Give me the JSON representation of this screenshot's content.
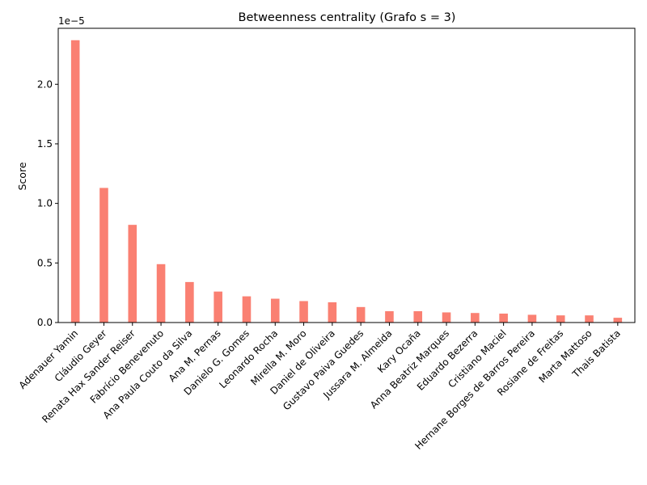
{
  "chart_data": {
    "type": "bar",
    "title": "Betweenness centrality (Grafo s = 3)",
    "xlabel": "",
    "ylabel": "Score",
    "scale_label": "1e−5",
    "ylim": [
      0,
      2.47
    ],
    "yticks": [
      0.0,
      0.5,
      1.0,
      1.5,
      2.0
    ],
    "ytick_labels": [
      "0.0",
      "0.5",
      "1.0",
      "1.5",
      "2.0"
    ],
    "bar_color": "#fa8072",
    "grid": false,
    "categories": [
      "Adenauer Yamin",
      "Cláudio Geyer",
      "Renata Hax Sander Reiser",
      "Fabrício Benevenuto",
      "Ana Paula Couto da Silva",
      "Ana M. Pernas",
      "Danielo G. Gomes",
      "Leonardo Rocha",
      "Mirella M. Moro",
      "Daniel de Oliveira",
      "Gustavo Paiva Guedes",
      "Jussara M. Almeida",
      "Kary Ocaña",
      "Anna Beatriz Marques",
      "Eduardo Bezerra",
      "Cristiano Maciel",
      "Hernane Borges de Barros Pereira",
      "Rosiane de Freitas",
      "Marta Mattoso",
      "Thais Batista"
    ],
    "values": [
      2.37,
      1.13,
      0.82,
      0.49,
      0.34,
      0.26,
      0.22,
      0.2,
      0.18,
      0.17,
      0.13,
      0.095,
      0.095,
      0.085,
      0.08,
      0.075,
      0.065,
      0.06,
      0.06,
      0.04
    ]
  }
}
